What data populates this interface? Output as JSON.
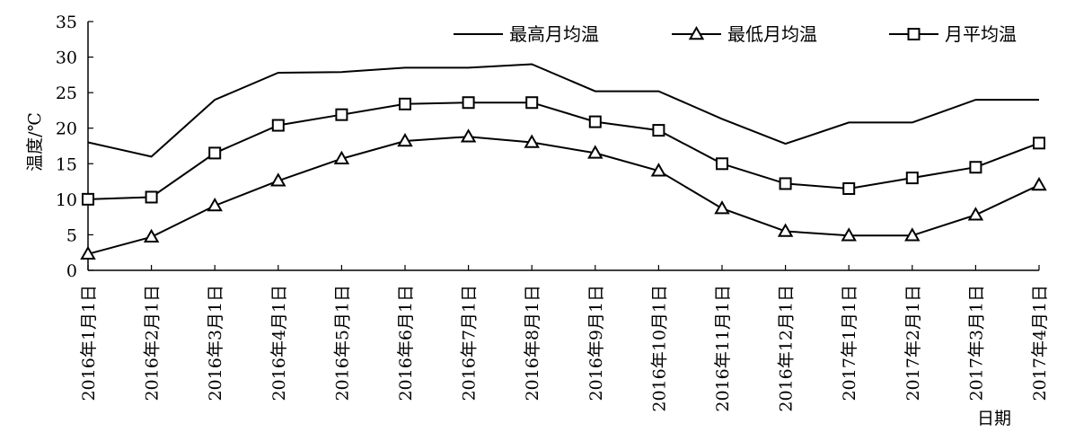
{
  "chart_data": {
    "type": "line",
    "title": "",
    "xlabel": "日期",
    "ylabel": "温度/℃",
    "ylim": [
      0,
      35
    ],
    "yticks": [
      0,
      5,
      10,
      15,
      20,
      25,
      30,
      35
    ],
    "grid": false,
    "legend_position": "top-right",
    "x_tick_labels": [
      "2016年1月1日",
      "2016年2月1日",
      "2016年3月1日",
      "2016年4月1日",
      "2016年5月1日",
      "2016年6月1日",
      "2016年7月1日",
      "2016年8月1日",
      "2016年9月1日",
      "2016年10月1日",
      "2016年11月1日",
      "2016年12月1日",
      "2017年1月1日",
      "2017年2月1日",
      "2017年3月1日",
      "2017年4月1日"
    ],
    "series": [
      {
        "name": "最高月均温",
        "marker": "none",
        "x": [
          0,
          1,
          2,
          3,
          4,
          5,
          6,
          7,
          8,
          9,
          10,
          11,
          12,
          13,
          14,
          15
        ],
        "values": [
          18,
          16,
          24,
          27.8,
          27.9,
          28.5,
          28.5,
          29,
          25.2,
          25.2,
          21.3,
          17.8,
          20.8,
          20.8,
          24.0,
          24.0
        ]
      },
      {
        "name": "最低月均温",
        "marker": "triangle",
        "x": [
          0,
          1,
          2,
          3,
          4,
          5,
          6,
          7,
          8,
          9,
          10,
          11,
          12,
          13,
          14,
          15
        ],
        "values": [
          2.3,
          4.7,
          9.1,
          12.6,
          15.7,
          18.2,
          18.8,
          18.0,
          16.5,
          14.0,
          8.7,
          5.5,
          4.9,
          4.9,
          7.8,
          12.0
        ]
      },
      {
        "name": "月平均温",
        "marker": "square",
        "x": [
          0,
          1,
          2,
          3,
          4,
          5,
          6,
          7,
          8,
          9,
          10,
          11,
          12,
          13,
          14,
          15
        ],
        "values": [
          10.0,
          10.3,
          16.5,
          20.4,
          21.9,
          23.4,
          23.6,
          23.6,
          20.9,
          19.7,
          15.0,
          12.2,
          11.5,
          13.0,
          14.5,
          17.9
        ]
      }
    ]
  }
}
